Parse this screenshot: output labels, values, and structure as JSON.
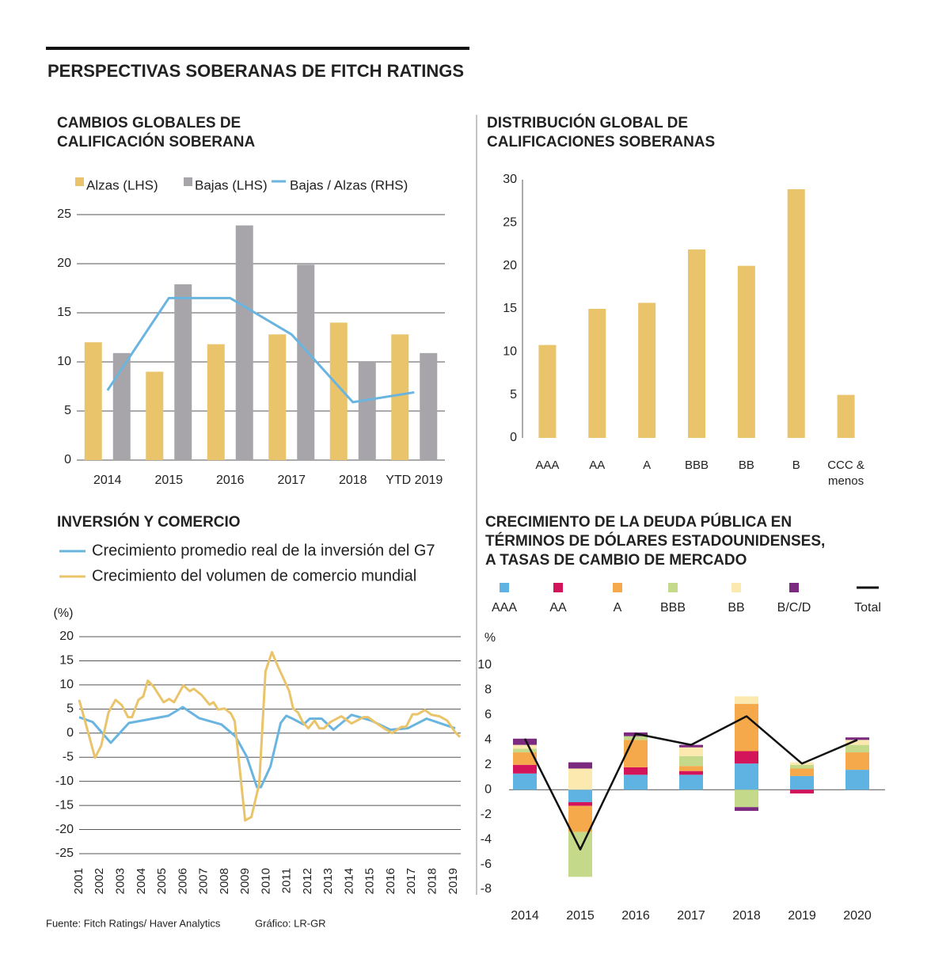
{
  "title": "PERSPECTIVAS SOBERANAS DE FITCH RATINGS",
  "source": "Fuente: Fitch Ratings/ Haver Analytics",
  "credit": "Gráfico: LR-GR",
  "chart_data": [
    {
      "type": "bar",
      "title": [
        "CAMBIOS GLOBALES DE",
        "CALIFICACIÓN SOBERANA"
      ],
      "categories": [
        "2014",
        "2015",
        "2016",
        "2017",
        "2018",
        "YTD 2019"
      ],
      "series": [
        {
          "name": "Alzas (LHS)",
          "type": "bar",
          "color": "#e9c46a",
          "values": [
            12,
            9,
            11.8,
            12.8,
            14,
            12.8
          ]
        },
        {
          "name": "Bajas (LHS)",
          "type": "bar",
          "color": "#a7a5a9",
          "values": [
            10.9,
            17.9,
            23.9,
            19.9,
            10,
            10.9
          ]
        },
        {
          "name": "Bajas / Alzas (RHS)",
          "type": "line",
          "color": "#6ab4e0",
          "values": [
            7.1,
            16.5,
            16.5,
            12.8,
            5.9,
            6.9
          ]
        }
      ],
      "ylim": [
        0,
        25
      ],
      "yticks": [
        0,
        5,
        10,
        15,
        20,
        25
      ],
      "grid": true
    },
    {
      "type": "bar",
      "title": [
        "DISTRIBUCIÓN GLOBAL DE",
        "CALIFICACIONES SOBERANAS"
      ],
      "categories": [
        "AAA",
        "AA",
        "A",
        "BBB",
        "BB",
        "B",
        "CCC & menos"
      ],
      "values": [
        10.8,
        15,
        15.7,
        21.9,
        20,
        28.9,
        5
      ],
      "color": "#e9c46a",
      "ylim": [
        0,
        30
      ],
      "yticks": [
        0,
        5,
        10,
        15,
        20,
        25,
        30
      ],
      "grid": false
    },
    {
      "type": "line",
      "title": [
        "INVERSIÓN Y COMERCIO"
      ],
      "y_label": "(%)",
      "series": [
        {
          "name": "Crecimiento promedio real de la inversión del G7",
          "color": "#6ab4e0",
          "x": [
            2001,
            2001.65,
            2002.52,
            2003.39,
            2005.29,
            2005.98,
            2006.77,
            2007.84,
            2008.52,
            2009.05,
            2009.55,
            2009.74,
            2010.2,
            2010.69,
            2010.96,
            2011.26,
            2011.79,
            2012.09,
            2012.66,
            2013.23,
            2014.1,
            2015.05,
            2015.96,
            2016.8,
            2017.71,
            2018.39,
            2019.08
          ],
          "values": [
            3.3,
            2.3,
            -2,
            2.1,
            3.6,
            5.4,
            3.1,
            1.8,
            -0.7,
            -4.8,
            -11.2,
            -11.2,
            -6.9,
            2.1,
            3.6,
            3,
            1.8,
            3,
            3,
            0.7,
            3.8,
            2.6,
            0.7,
            1,
            3,
            2,
            1
          ]
        },
        {
          "name": "Crecimiento del volumen de comercio mundial",
          "color": "#e9c46a",
          "x": [
            2001,
            2001.46,
            2001.76,
            2002.06,
            2002.41,
            2002.75,
            2003.05,
            2003.35,
            2003.54,
            2003.85,
            2004.08,
            2004.3,
            2004.57,
            2005.06,
            2005.33,
            2005.56,
            2006.01,
            2006.32,
            2006.51,
            2006.89,
            2007.27,
            2007.46,
            2007.68,
            2007.99,
            2008.29,
            2008.48,
            2008.98,
            2009.28,
            2009.66,
            2009.96,
            2010.27,
            2010.53,
            2010.87,
            2011.1,
            2011.29,
            2011.52,
            2011.75,
            2012.02,
            2012.32,
            2012.55,
            2012.78,
            2013.08,
            2013.61,
            2014.1,
            2014.67,
            2014.9,
            2015.28,
            2015.66,
            2016.04,
            2016.5,
            2016.72,
            2017.03,
            2017.26,
            2017.63,
            2017.94,
            2018.32,
            2018.7,
            2019.08,
            2019.31
          ],
          "values": [
            6.9,
            -0.3,
            -5.1,
            -2.6,
            4.3,
            6.9,
            5.8,
            3.3,
            3.3,
            6.9,
            7.6,
            10.9,
            9.7,
            6.4,
            7.1,
            6.4,
            9.9,
            8.7,
            9.2,
            7.9,
            5.9,
            6.4,
            4.9,
            5.1,
            4.1,
            2.5,
            -18.1,
            -17.4,
            -10.5,
            12.8,
            16.8,
            14.1,
            10.9,
            8.7,
            5.1,
            4.3,
            2.3,
            1,
            2.6,
            1,
            1,
            2.3,
            3.5,
            2,
            3.3,
            3.3,
            2.1,
            1,
            0,
            1.3,
            1.3,
            3.9,
            3.9,
            4.8,
            3.8,
            3.5,
            2.6,
            0.2,
            -0.8
          ]
        }
      ],
      "xlim": [
        2001,
        2019.35
      ],
      "xticks": [
        2001,
        2002,
        2003,
        2004,
        2005,
        2006,
        2007,
        2008,
        2009,
        2010,
        2011,
        2012,
        2013,
        2014,
        2015,
        2016,
        2017,
        2018,
        2019
      ],
      "ylim": [
        -25,
        20
      ],
      "yticks": [
        -25,
        -20,
        -15,
        -10,
        -5,
        0,
        5,
        10,
        15,
        20
      ],
      "grid": true
    },
    {
      "type": "stacked_bar",
      "title": [
        "CRECIMIENTO DE LA DEUDA PÚBLICA EN",
        "TÉRMINOS DE DÓLARES ESTADOUNIDENSES,",
        "A TASAS DE CAMBIO DE MERCADO"
      ],
      "y_label": "%",
      "categories": [
        "2014",
        "2015",
        "2016",
        "2017",
        "2018",
        "2019",
        "2020"
      ],
      "series": [
        {
          "name": "AAA",
          "type": "bar",
          "color": "#5fb3e3",
          "values": [
            1.3,
            -1.0,
            1.2,
            1.2,
            2.1,
            1.1,
            1.6
          ]
        },
        {
          "name": "AA",
          "type": "bar",
          "color": "#d4145a",
          "values": [
            0.7,
            -0.3,
            0.6,
            0.3,
            1.0,
            -0.3,
            0
          ]
        },
        {
          "name": "A",
          "type": "bar",
          "color": "#f5a94a",
          "values": [
            1.0,
            -2.1,
            2.2,
            0.4,
            3.8,
            0.6,
            1.4
          ]
        },
        {
          "name": "BBB",
          "type": "bar",
          "color": "#c5d98a",
          "values": [
            0.3,
            -3.6,
            0.3,
            0.8,
            -1.4,
            0.3,
            0.6
          ]
        },
        {
          "name": "BB",
          "type": "bar",
          "color": "#fbe9b0",
          "values": [
            0.3,
            1.7,
            0,
            0.7,
            0.6,
            0.2,
            0.4
          ]
        },
        {
          "name": "B/C/D",
          "type": "bar",
          "color": "#7b2a7f",
          "values": [
            0.5,
            0.5,
            0.3,
            0.2,
            -0.3,
            0,
            0.2
          ]
        },
        {
          "name": "Total",
          "type": "line",
          "color": "#111111",
          "values": [
            4.1,
            -4.8,
            4.5,
            3.6,
            5.9,
            2.1,
            4.0
          ]
        }
      ],
      "ylim": [
        -8,
        10
      ],
      "yticks": [
        -8,
        -6,
        -4,
        -2,
        0,
        2,
        4,
        6,
        8,
        10
      ],
      "grid": false
    }
  ]
}
